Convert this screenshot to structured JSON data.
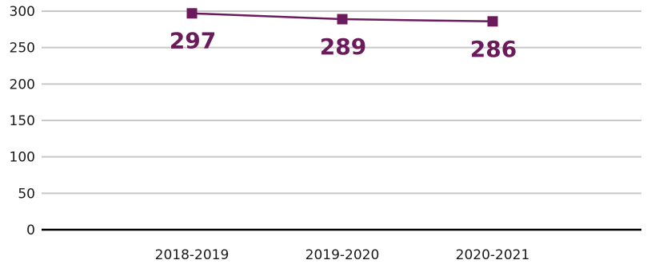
{
  "chart_data": {
    "type": "line",
    "title": "",
    "xlabel": "",
    "ylabel": "",
    "categories": [
      "2018-2019",
      "2019-2020",
      "2020-2021"
    ],
    "series": [
      {
        "values": [
          297,
          289,
          286
        ],
        "color": "#6b1a5b"
      }
    ],
    "ylim": [
      0,
      300
    ],
    "yticks": [
      "0",
      "50",
      "100",
      "150",
      "200",
      "250",
      "300"
    ],
    "data_labels": [
      "297",
      "289",
      "286"
    ],
    "grid": true,
    "marker": "square",
    "legend": "none"
  }
}
